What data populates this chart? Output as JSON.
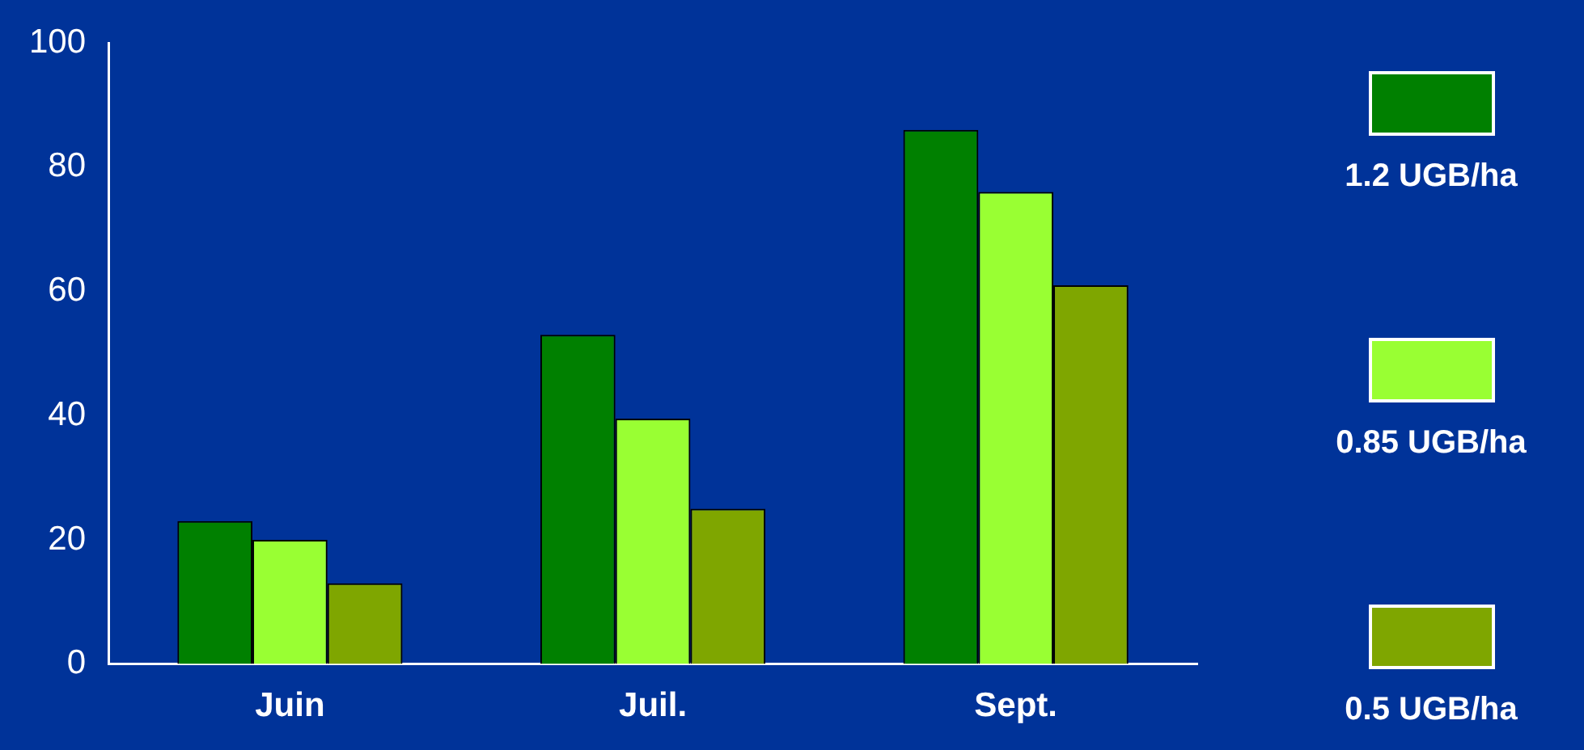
{
  "chart_data": {
    "type": "bar",
    "categories": [
      "Juin",
      "Juil.",
      "Sept."
    ],
    "series": [
      {
        "name": "1.2 UGB/ha",
        "color": "#008000",
        "values": [
          23,
          53,
          86
        ]
      },
      {
        "name": "0.85 UGB/ha",
        "color": "#99ff33",
        "values": [
          20,
          39.5,
          76
        ]
      },
      {
        "name": "0.5 UGB/ha",
        "color": "#7fa600",
        "values": [
          13,
          25,
          61
        ]
      }
    ],
    "ylim": [
      0,
      100
    ],
    "yticks": [
      0,
      20,
      40,
      60,
      80,
      100
    ],
    "grid": false,
    "legend": "right"
  }
}
